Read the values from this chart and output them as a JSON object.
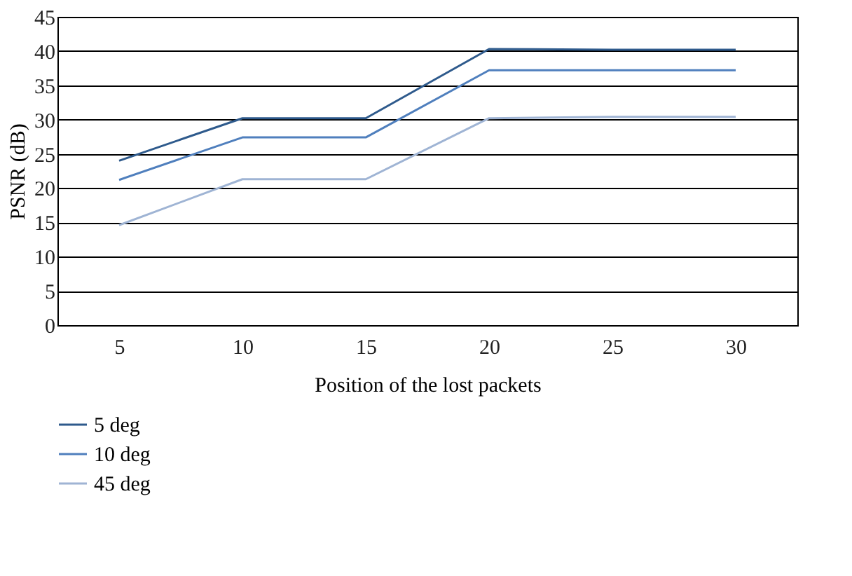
{
  "chart_data": {
    "type": "line",
    "xlabel": "Position of the lost packets",
    "ylabel": "PSNR (dB)",
    "categories": [
      "5",
      "10",
      "15",
      "20",
      "25",
      "30"
    ],
    "ylim": [
      0,
      45
    ],
    "yticks": [
      0,
      5,
      10,
      15,
      20,
      25,
      30,
      35,
      40,
      45
    ],
    "grid": "y",
    "legend": "bottom",
    "marker": "none",
    "line_style": "solid",
    "series": [
      {
        "name": "5 deg",
        "color": "#2e5a8c",
        "values": [
          24,
          30.2,
          30.2,
          40.3,
          40.2,
          40.2
        ]
      },
      {
        "name": "10 deg",
        "color": "#4f7fbd",
        "values": [
          21.2,
          27.4,
          27.4,
          37.2,
          37.2,
          37.2
        ]
      },
      {
        "name": "45 deg",
        "color": "#9fb4d4",
        "values": [
          14.6,
          21.3,
          21.3,
          30.2,
          30.4,
          30.4
        ]
      }
    ]
  }
}
